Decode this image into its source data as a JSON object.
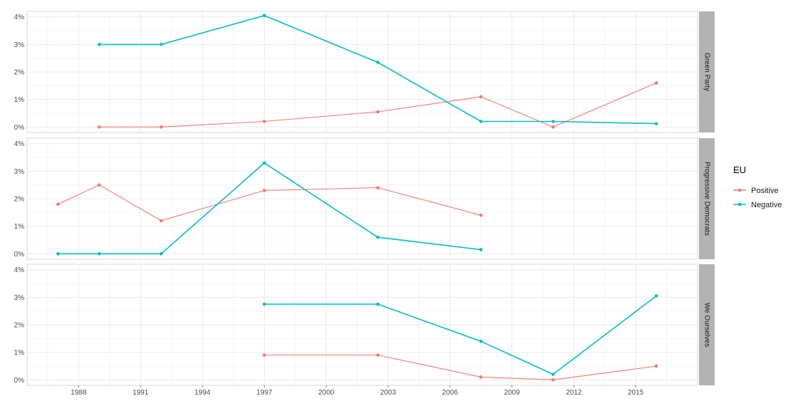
{
  "chart_data": {
    "type": "line",
    "layout": "faceted-vertical",
    "x_ticks": [
      1988,
      1991,
      1994,
      1997,
      2000,
      2003,
      2006,
      2009,
      2012,
      2015
    ],
    "xlim": [
      1985.5,
      2018
    ],
    "y_ticks": [
      0,
      1,
      2,
      3,
      4
    ],
    "y_tick_labels": [
      "0%",
      "1%",
      "2%",
      "3%",
      "4%"
    ],
    "ylim": [
      -0.2,
      4.2
    ],
    "grid": true,
    "legend": {
      "title": "EU",
      "position": "right",
      "entries": [
        "Positive",
        "Negative"
      ]
    },
    "colors": {
      "Positive": "#F8766D",
      "Negative": "#00BFC4",
      "strip_bg": "#b3b3b3",
      "strip_text": "#1a1a1a",
      "grid_major": "#ebebeb",
      "grid_minor": "#f5f5f5"
    },
    "panels": [
      {
        "label": "Green Party",
        "series": [
          {
            "name": "Positive",
            "x": [
              1989,
              1992,
              1997,
              2002.5,
              2007.5,
              2011,
              2016
            ],
            "y": [
              0.0,
              0.0,
              0.2,
              0.55,
              1.1,
              0.0,
              1.6
            ]
          },
          {
            "name": "Negative",
            "x": [
              1989,
              1992,
              1997,
              2002.5,
              2007.5,
              2011,
              2016
            ],
            "y": [
              3.0,
              3.0,
              4.05,
              2.35,
              0.2,
              0.2,
              0.12
            ]
          }
        ]
      },
      {
        "label": "Progressive Democrats",
        "series": [
          {
            "name": "Positive",
            "x": [
              1987,
              1989,
              1992,
              1997,
              2002.5,
              2007.5
            ],
            "y": [
              1.8,
              2.5,
              1.2,
              2.3,
              2.4,
              1.4
            ]
          },
          {
            "name": "Negative",
            "x": [
              1987,
              1989,
              1992,
              1997,
              2002.5,
              2007.5
            ],
            "y": [
              0.0,
              0.0,
              0.0,
              3.3,
              0.6,
              0.15
            ]
          }
        ]
      },
      {
        "label": "We Ourselves",
        "series": [
          {
            "name": "Positive",
            "x": [
              1997,
              2002.5,
              2007.5,
              2011,
              2016
            ],
            "y": [
              0.9,
              0.9,
              0.1,
              0.0,
              0.5
            ]
          },
          {
            "name": "Negative",
            "x": [
              1997,
              2002.5,
              2007.5,
              2011,
              2016
            ],
            "y": [
              2.75,
              2.75,
              1.4,
              0.2,
              3.05
            ]
          }
        ]
      }
    ]
  }
}
